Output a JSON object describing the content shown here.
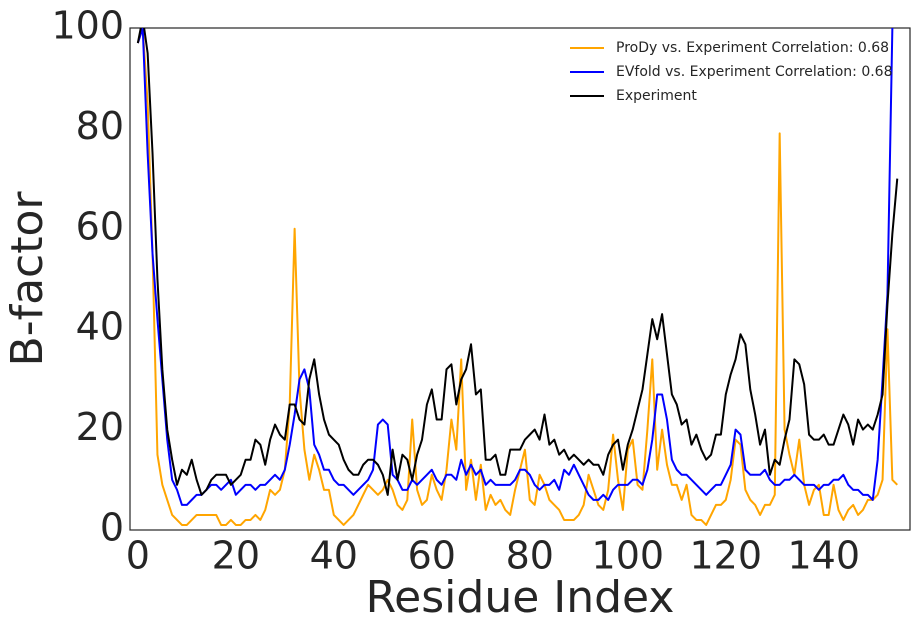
{
  "chart_data": {
    "type": "line",
    "xlabel": "Residue Index",
    "ylabel": "B-factor",
    "xlim": [
      -1.6,
      157.6
    ],
    "ylim": [
      0,
      100
    ],
    "xticks": [
      0,
      20,
      40,
      60,
      80,
      100,
      120,
      140
    ],
    "yticks": [
      0,
      20,
      40,
      60,
      80,
      100
    ],
    "grid": false,
    "legend": "upper right",
    "x": [
      0,
      1,
      2,
      3,
      4,
      5,
      6,
      7,
      8,
      9,
      10,
      11,
      12,
      13,
      14,
      15,
      16,
      17,
      18,
      19,
      20,
      21,
      22,
      23,
      24,
      25,
      26,
      27,
      28,
      29,
      30,
      31,
      32,
      33,
      34,
      35,
      36,
      37,
      38,
      39,
      40,
      41,
      42,
      43,
      44,
      45,
      46,
      47,
      48,
      49,
      50,
      51,
      52,
      53,
      54,
      55,
      56,
      57,
      58,
      59,
      60,
      61,
      62,
      63,
      64,
      65,
      66,
      67,
      68,
      69,
      70,
      71,
      72,
      73,
      74,
      75,
      76,
      77,
      78,
      79,
      80,
      81,
      82,
      83,
      84,
      85,
      86,
      87,
      88,
      89,
      90,
      91,
      92,
      93,
      94,
      95,
      96,
      97,
      98,
      99,
      100,
      101,
      102,
      103,
      104,
      105,
      106,
      107,
      108,
      109,
      110,
      111,
      112,
      113,
      114,
      115,
      116,
      117,
      118,
      119,
      120,
      121,
      122,
      123,
      124,
      125,
      126,
      127,
      128,
      129,
      130,
      131,
      132,
      133,
      134,
      135,
      136,
      137,
      138,
      139,
      140,
      141,
      142,
      143,
      144,
      145,
      146,
      147,
      148,
      149,
      150,
      151,
      152,
      153,
      154,
      155
    ],
    "series": [
      {
        "name": "ProDy vs. Experiment Correlation: 0.68",
        "color": "#ffa500",
        "values": [
          97,
          100,
          85,
          55,
          15,
          9,
          6,
          3,
          2,
          1,
          1,
          2,
          3,
          3,
          3,
          3,
          3,
          1,
          1,
          2,
          1,
          1,
          2,
          2,
          3,
          2,
          4,
          8,
          7,
          8,
          12,
          25,
          60,
          28,
          16,
          10,
          15,
          12,
          8,
          8,
          3,
          2,
          1,
          2,
          3,
          5,
          7,
          9,
          8,
          7,
          8,
          10,
          8,
          5,
          4,
          6,
          22,
          8,
          5,
          6,
          11,
          8,
          6,
          12,
          22,
          16,
          34,
          8,
          14,
          6,
          13,
          4,
          7,
          5,
          6,
          4,
          3,
          8,
          12,
          16,
          6,
          5,
          11,
          9,
          6,
          5,
          4,
          2,
          2,
          2,
          3,
          5,
          11,
          8,
          5,
          4,
          8,
          19,
          10,
          4,
          16,
          18,
          9,
          8,
          20,
          34,
          12,
          20,
          13,
          9,
          9,
          6,
          9,
          3,
          2,
          2,
          1,
          3,
          5,
          5,
          6,
          10,
          18,
          17,
          8,
          6,
          5,
          3,
          5,
          5,
          7,
          79,
          20,
          15,
          11,
          18,
          9,
          5,
          8,
          9,
          3,
          3,
          9,
          4,
          2,
          4,
          5,
          3,
          4,
          6,
          6,
          7,
          10,
          40,
          10,
          9
        ]
      },
      {
        "name": "EVfold vs. Experiment Correlation: 0.68",
        "color": "#0000ff",
        "values": [
          97,
          100,
          75,
          55,
          42,
          30,
          18,
          10,
          8,
          5,
          5,
          6,
          7,
          7,
          8,
          9,
          9,
          8,
          9,
          10,
          7,
          8,
          9,
          9,
          8,
          9,
          9,
          10,
          11,
          10,
          12,
          17,
          23,
          30,
          32,
          28,
          17,
          15,
          12,
          12,
          10,
          9,
          9,
          8,
          7,
          8,
          9,
          10,
          12,
          21,
          22,
          21,
          11,
          10,
          8,
          8,
          10,
          9,
          10,
          11,
          12,
          10,
          9,
          11,
          11,
          10,
          14,
          11,
          13,
          11,
          12,
          9,
          10,
          9,
          9,
          9,
          9,
          10,
          12,
          12,
          11,
          9,
          8,
          9,
          9,
          10,
          8,
          12,
          11,
          13,
          11,
          9,
          7,
          6,
          6,
          7,
          6,
          8,
          9,
          9,
          9,
          10,
          10,
          9,
          12,
          18,
          27,
          27,
          22,
          14,
          12,
          11,
          11,
          10,
          9,
          8,
          7,
          8,
          9,
          9,
          11,
          13,
          20,
          19,
          12,
          11,
          11,
          11,
          12,
          10,
          9,
          9,
          10,
          10,
          11,
          10,
          9,
          9,
          9,
          8,
          9,
          9,
          10,
          10,
          11,
          9,
          8,
          8,
          7,
          7,
          6,
          14,
          30,
          47,
          100,
          110
        ]
      },
      {
        "name": "Experiment",
        "color": "#000000",
        "values": [
          97,
          102,
          95,
          75,
          50,
          32,
          20,
          14,
          9,
          12,
          11,
          14,
          10,
          7,
          8,
          10,
          11,
          11,
          11,
          9,
          10,
          11,
          14,
          14,
          18,
          17,
          13,
          18,
          21,
          19,
          18,
          25,
          25,
          22,
          21,
          30,
          34,
          27,
          22,
          19,
          18,
          17,
          14,
          12,
          11,
          11,
          13,
          14,
          14,
          13,
          11,
          7,
          16,
          10,
          15,
          14,
          10,
          15,
          18,
          25,
          28,
          22,
          22,
          32,
          33,
          25,
          30,
          32,
          37,
          27,
          28,
          14,
          14,
          15,
          11,
          11,
          16,
          16,
          16,
          18,
          19,
          20,
          18,
          23,
          17,
          18,
          15,
          16,
          14,
          15,
          14,
          13,
          14,
          13,
          13,
          11,
          15,
          17,
          18,
          12,
          17,
          20,
          24,
          28,
          35,
          42,
          38,
          43,
          35,
          27,
          25,
          21,
          22,
          17,
          19,
          16,
          14,
          15,
          19,
          19,
          27,
          31,
          34,
          39,
          37,
          28,
          23,
          17,
          20,
          11,
          14,
          13,
          18,
          22,
          34,
          33,
          29,
          19,
          18,
          18,
          19,
          17,
          17,
          20,
          23,
          21,
          17,
          22,
          20,
          21,
          20,
          23,
          27,
          45,
          59,
          70
        ]
      }
    ]
  }
}
